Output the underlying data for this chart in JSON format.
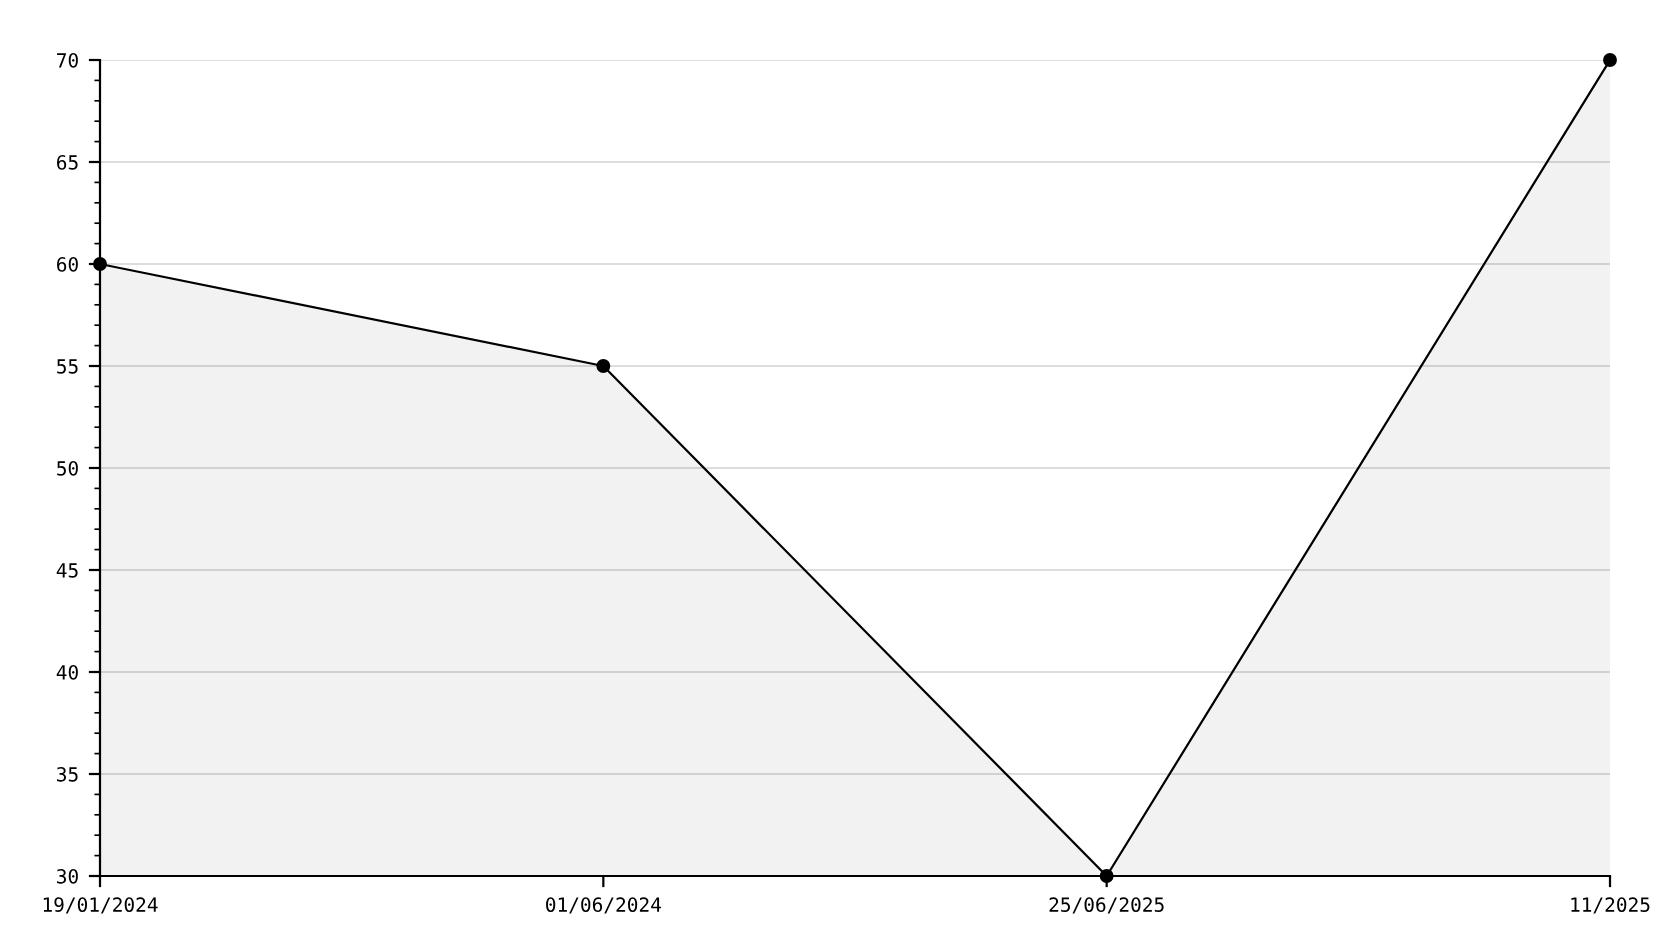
{
  "chart_data": {
    "type": "area",
    "categories": [
      "19/01/2024",
      "01/06/2024",
      "25/06/2025",
      "11/2025"
    ],
    "series": [
      {
        "color": "#000000",
        "values": [
          60,
          55,
          30,
          70
        ]
      }
    ],
    "ylim": [
      30,
      70
    ],
    "yticks": [
      30,
      35,
      40,
      45,
      50,
      55,
      60,
      65,
      70
    ],
    "grid": "y",
    "marker": "circle",
    "line_style": "solid",
    "legend": false
  }
}
